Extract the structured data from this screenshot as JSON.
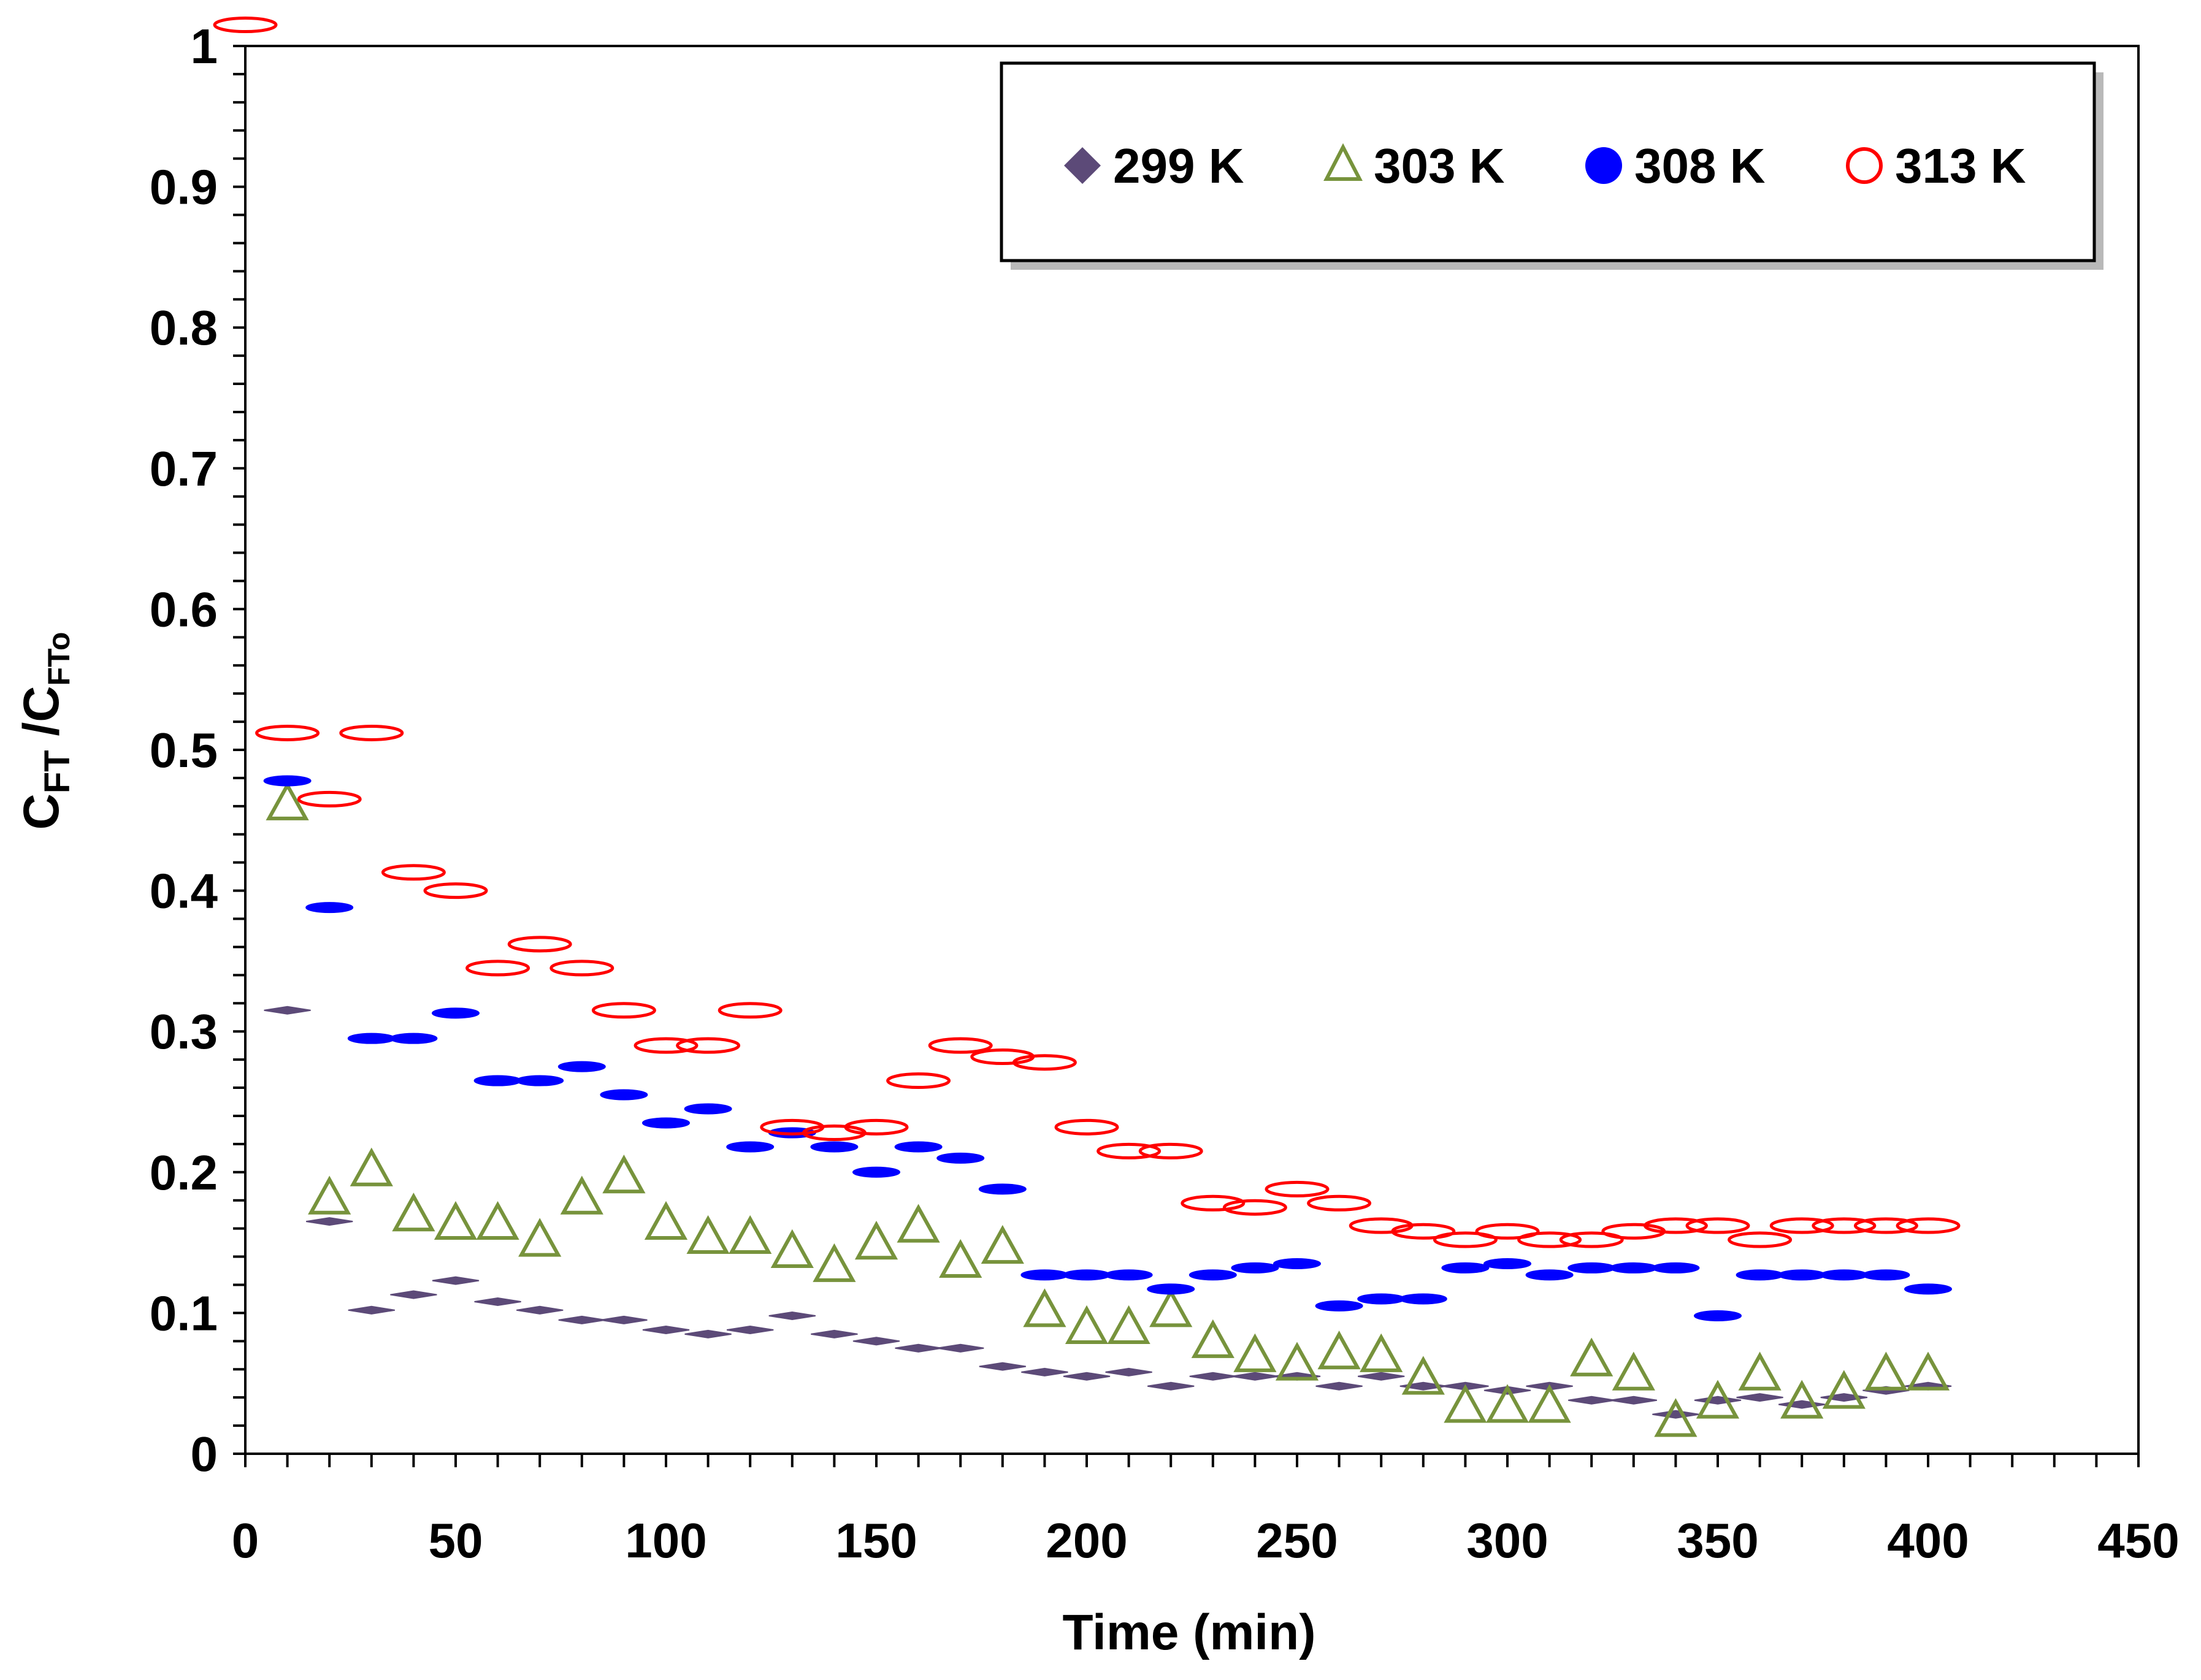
{
  "chart_data": {
    "type": "scatter",
    "title": "",
    "xlabel": "Time (min)",
    "ylabel": {
      "main": "C",
      "sub1": "FT",
      "mid": " /C",
      "sub2": "FTo"
    },
    "xlim": [
      0,
      450
    ],
    "ylim": [
      0,
      1
    ],
    "x_ticks": [
      "0",
      "50",
      "100",
      "150",
      "200",
      "250",
      "300",
      "350",
      "400",
      "450"
    ],
    "y_ticks": [
      "0",
      "0.1",
      "0.2",
      "0.3",
      "0.4",
      "0.5",
      "0.6",
      "0.7",
      "0.8",
      "0.9",
      "1"
    ],
    "grid": false,
    "legend_position": "top-right",
    "series": [
      {
        "name": "299 K",
        "marker": "diamond",
        "color": "#5c4a78",
        "fill": true,
        "x": [
          10,
          20,
          30,
          40,
          50,
          60,
          70,
          80,
          90,
          100,
          110,
          120,
          130,
          140,
          150,
          160,
          170,
          180,
          190,
          200,
          210,
          220,
          230,
          240,
          250,
          260,
          270,
          280,
          290,
          300,
          310,
          320,
          330,
          340,
          350,
          360,
          370,
          380,
          390,
          400
        ],
        "y": [
          0.315,
          0.165,
          0.102,
          0.113,
          0.123,
          0.108,
          0.102,
          0.095,
          0.095,
          0.088,
          0.085,
          0.088,
          0.098,
          0.085,
          0.08,
          0.075,
          0.075,
          0.062,
          0.058,
          0.055,
          0.058,
          0.048,
          0.055,
          0.055,
          0.055,
          0.048,
          0.055,
          0.048,
          0.048,
          0.045,
          0.048,
          0.038,
          0.038,
          0.028,
          0.038,
          0.04,
          0.035,
          0.04,
          0.045,
          0.048
        ]
      },
      {
        "name": "303 K",
        "marker": "triangle",
        "color": "#77933c",
        "fill": false,
        "x": [
          10,
          20,
          30,
          40,
          50,
          60,
          70,
          80,
          90,
          100,
          110,
          120,
          130,
          140,
          150,
          160,
          170,
          180,
          190,
          200,
          210,
          220,
          230,
          240,
          250,
          260,
          270,
          280,
          290,
          300,
          310,
          320,
          330,
          340,
          350,
          360,
          370,
          380,
          390,
          400
        ],
        "y": [
          0.46,
          0.18,
          0.2,
          0.168,
          0.162,
          0.162,
          0.15,
          0.18,
          0.195,
          0.162,
          0.152,
          0.152,
          0.142,
          0.132,
          0.148,
          0.16,
          0.135,
          0.145,
          0.1,
          0.088,
          0.088,
          0.1,
          0.078,
          0.068,
          0.062,
          0.07,
          0.068,
          0.052,
          0.032,
          0.032,
          0.032,
          0.065,
          0.055,
          0.022,
          0.035,
          0.055,
          0.035,
          0.042,
          0.055,
          0.055
        ]
      },
      {
        "name": "308 K",
        "marker": "circle",
        "color": "#0000ff",
        "fill": true,
        "x": [
          10,
          20,
          30,
          40,
          50,
          60,
          70,
          80,
          90,
          100,
          110,
          120,
          130,
          140,
          150,
          160,
          170,
          180,
          190,
          200,
          210,
          220,
          230,
          240,
          250,
          260,
          270,
          280,
          290,
          300,
          310,
          320,
          330,
          340,
          350,
          360,
          370,
          380,
          390,
          400
        ],
        "y": [
          0.478,
          0.388,
          0.295,
          0.295,
          0.313,
          0.265,
          0.265,
          0.275,
          0.255,
          0.235,
          0.245,
          0.218,
          0.228,
          0.218,
          0.2,
          0.218,
          0.21,
          0.188,
          0.127,
          0.127,
          0.127,
          0.117,
          0.127,
          0.132,
          0.135,
          0.105,
          0.11,
          0.11,
          0.132,
          0.135,
          0.127,
          0.132,
          0.132,
          0.132,
          0.098,
          0.127,
          0.127,
          0.127,
          0.127,
          0.117
        ]
      },
      {
        "name": "313 K",
        "marker": "open-circle",
        "color": "#ff0000",
        "fill": false,
        "x": [
          0,
          10,
          20,
          30,
          40,
          50,
          60,
          70,
          80,
          90,
          100,
          110,
          120,
          130,
          140,
          150,
          160,
          170,
          180,
          190,
          200,
          210,
          220,
          230,
          240,
          250,
          260,
          270,
          280,
          290,
          300,
          310,
          320,
          330,
          340,
          350,
          360,
          370,
          380,
          390,
          400
        ],
        "y": [
          1.015,
          0.512,
          0.465,
          0.512,
          0.413,
          0.4,
          0.345,
          0.362,
          0.345,
          0.315,
          0.29,
          0.29,
          0.315,
          0.232,
          0.228,
          0.232,
          0.265,
          0.29,
          0.282,
          0.278,
          0.232,
          0.215,
          0.215,
          0.178,
          0.175,
          0.188,
          0.178,
          0.162,
          0.158,
          0.152,
          0.158,
          0.152,
          0.152,
          0.158,
          0.162,
          0.162,
          0.152,
          0.162,
          0.162,
          0.162,
          0.162
        ]
      }
    ]
  }
}
